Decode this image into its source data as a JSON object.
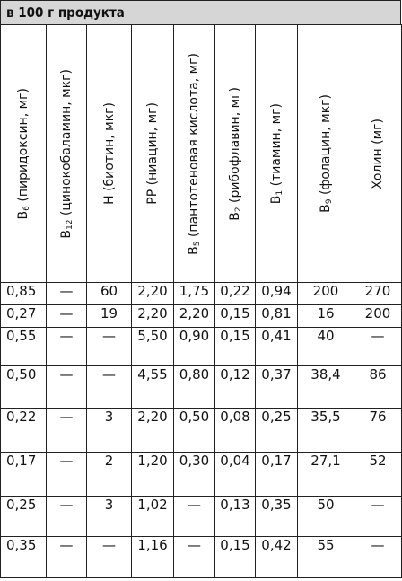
{
  "band_title": "в 100 г продукта",
  "columns": [
    {
      "label": "В",
      "sub": "6",
      "rest": " (пиридоксин, мг)"
    },
    {
      "label": "В",
      "sub": "12",
      "rest": " (цинокобаламин, мкг)"
    },
    {
      "label": "Н (биотин, мкг)",
      "sub": "",
      "rest": ""
    },
    {
      "label": "РР (ниацин, мг)",
      "sub": "",
      "rest": ""
    },
    {
      "label": "В",
      "sub": "5",
      "rest": " (пантотеновая кислота, мг)"
    },
    {
      "label": "В",
      "sub": "2",
      "rest": " (рибофлавин, мг)"
    },
    {
      "label": "В",
      "sub": "1",
      "rest": " (тиамин, мг)"
    },
    {
      "label": "В",
      "sub": "9",
      "rest": " (фолацин, мкг)"
    },
    {
      "label": "Холин (мг)",
      "sub": "",
      "rest": ""
    }
  ],
  "rows": [
    [
      "0,85",
      "—",
      "60",
      "2,20",
      "1,75",
      "0,22",
      "0,94",
      "200",
      "270"
    ],
    [
      "0,27",
      "—",
      "19",
      "2,20",
      "2,20",
      "0,15",
      "0,81",
      "16",
      "200"
    ],
    [
      "0,55",
      "—",
      "—",
      "5,50",
      "0,90",
      "0,15",
      "0,41",
      "40",
      "—"
    ],
    [
      "0,50",
      "—",
      "—",
      "4,55",
      "0,80",
      "0,12",
      "0,37",
      "38,4",
      "86"
    ],
    [
      "0,22",
      "—",
      "3",
      "2,20",
      "0,50",
      "0,08",
      "0,25",
      "35,5",
      "76"
    ],
    [
      "0,17",
      "—",
      "2",
      "1,20",
      "0,30",
      "0,04",
      "0,17",
      "27,1",
      "52"
    ],
    [
      "0,25",
      "—",
      "3",
      "1,02",
      "—",
      "0,13",
      "0,35",
      "50",
      "—"
    ],
    [
      "0,35",
      "—",
      "—",
      "1,16",
      "—",
      "0,15",
      "0,42",
      "55",
      "—"
    ]
  ]
}
